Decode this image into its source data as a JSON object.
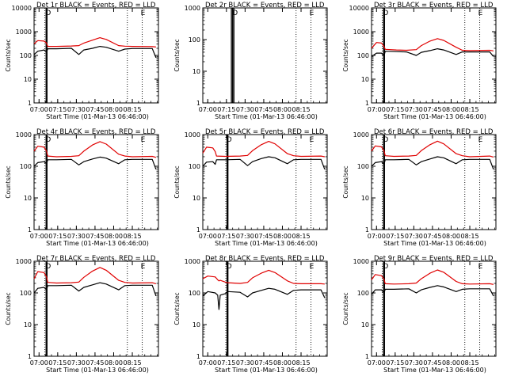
{
  "figure": {
    "xlabel": "Start Time (01-Mar-13 06:46:00)",
    "ylabel": "Counts/sec",
    "xticks": [
      "07:00",
      "07:15",
      "07:30",
      "07:45",
      "08:00",
      "08:15"
    ],
    "yticks_4decade": [
      "1",
      "10",
      "100",
      "1000",
      "10000"
    ],
    "yticks_3decade": [
      "1",
      "10",
      "100",
      "1000"
    ],
    "marker_letters": [
      "D",
      "E"
    ],
    "colors": {
      "events": "#000000",
      "lld": "#e00000",
      "axes": "#000000",
      "background": "#ffffff"
    }
  },
  "chart_data": [
    {
      "type": "line",
      "title": "Det 1r BLACK = Events, RED = LLD",
      "detector": "1r",
      "log_y": true,
      "ylim": [
        1,
        10000
      ],
      "x_unit": "minutes after 06:46:00",
      "xlim": [
        0,
        100
      ],
      "series": [
        {
          "name": "Events",
          "color": "#000000",
          "x": [
            0,
            3,
            8,
            10,
            11,
            18,
            30,
            36,
            40,
            47,
            53,
            58,
            68,
            73,
            79,
            95,
            98
          ],
          "y": [
            110,
            150,
            170,
            140,
            190,
            190,
            200,
            110,
            170,
            200,
            240,
            220,
            150,
            185,
            195,
            195,
            80
          ]
        },
        {
          "name": "LLD",
          "color": "#e00000",
          "x": [
            0,
            3,
            8,
            10,
            11,
            18,
            30,
            36,
            40,
            47,
            53,
            58,
            68,
            73,
            79,
            95,
            98
          ],
          "y": [
            310,
            420,
            400,
            330,
            240,
            240,
            250,
            260,
            330,
            440,
            560,
            470,
            260,
            245,
            240,
            235,
            225
          ]
        }
      ],
      "vlines": [
        {
          "x": 8.7,
          "style": "dotted"
        },
        {
          "x": 9.7,
          "style": "solid"
        },
        {
          "x": 10.4,
          "style": "solid"
        },
        {
          "x": 75,
          "style": "dotted"
        },
        {
          "x": 87,
          "style": "dotted"
        }
      ]
    },
    {
      "type": "line",
      "title": "Det 2r BLACK = Events, RED = LLD",
      "detector": "2r",
      "log_y": true,
      "ylim": [
        1,
        1000
      ],
      "x_unit": "minutes after 06:46:00",
      "xlim": [
        0,
        100
      ],
      "series": [],
      "vlines": [
        {
          "x": 23,
          "style": "solid"
        },
        {
          "x": 24,
          "style": "solid"
        },
        {
          "x": 25,
          "style": "solid"
        },
        {
          "x": 75,
          "style": "dotted"
        },
        {
          "x": 87,
          "style": "dotted"
        }
      ]
    },
    {
      "type": "line",
      "title": "Det 3r BLACK = Events, RED = LLD",
      "detector": "3r",
      "log_y": true,
      "ylim": [
        1,
        10000
      ],
      "x_unit": "minutes after 06:46:00",
      "xlim": [
        0,
        100
      ],
      "series": [
        {
          "name": "Events",
          "color": "#000000",
          "x": [
            0,
            4,
            8,
            10,
            11,
            20,
            28,
            36,
            40,
            47,
            53,
            58,
            68,
            73,
            79,
            95,
            98
          ],
          "y": [
            90,
            125,
            125,
            95,
            150,
            145,
            140,
            100,
            135,
            160,
            190,
            170,
            110,
            140,
            140,
            140,
            90
          ]
        },
        {
          "name": "LLD",
          "color": "#e00000",
          "x": [
            0,
            4,
            8,
            10,
            11,
            20,
            28,
            36,
            40,
            47,
            53,
            58,
            68,
            73,
            79,
            95,
            98
          ],
          "y": [
            200,
            350,
            330,
            240,
            180,
            170,
            165,
            175,
            260,
            400,
            510,
            430,
            220,
            165,
            160,
            165,
            155
          ]
        }
      ],
      "vlines": [
        {
          "x": 8.7,
          "style": "dotted"
        },
        {
          "x": 9.7,
          "style": "solid"
        },
        {
          "x": 10.4,
          "style": "solid"
        },
        {
          "x": 75,
          "style": "dotted"
        },
        {
          "x": 87,
          "style": "dotted"
        }
      ]
    },
    {
      "type": "line",
      "title": "Det 4r BLACK = Events, RED = LLD",
      "detector": "4r",
      "log_y": true,
      "ylim": [
        1,
        1000
      ],
      "x_unit": "minutes after 06:46:00",
      "xlim": [
        0,
        100
      ],
      "series": [
        {
          "name": "Events",
          "color": "#000000",
          "x": [
            0,
            3,
            8,
            10,
            11,
            18,
            30,
            36,
            40,
            47,
            53,
            58,
            68,
            73,
            79,
            95,
            98
          ],
          "y": [
            100,
            130,
            140,
            120,
            160,
            160,
            165,
            110,
            140,
            170,
            195,
            180,
            120,
            160,
            165,
            165,
            80
          ]
        },
        {
          "name": "LLD",
          "color": "#e00000",
          "x": [
            0,
            3,
            8,
            10,
            11,
            18,
            30,
            36,
            40,
            47,
            53,
            58,
            68,
            73,
            79,
            95,
            98
          ],
          "y": [
            300,
            430,
            400,
            300,
            210,
            200,
            205,
            215,
            300,
            470,
            600,
            500,
            240,
            210,
            200,
            205,
            190
          ]
        }
      ],
      "vlines": [
        {
          "x": 8.7,
          "style": "dotted"
        },
        {
          "x": 9.7,
          "style": "solid"
        },
        {
          "x": 10.4,
          "style": "solid"
        },
        {
          "x": 75,
          "style": "dotted"
        },
        {
          "x": 87,
          "style": "dotted"
        }
      ]
    },
    {
      "type": "line",
      "title": "Det 5r BLACK = Events, RED = LLD",
      "detector": "5r",
      "log_y": true,
      "ylim": [
        1,
        1000
      ],
      "x_unit": "minutes after 06:46:00",
      "xlim": [
        0,
        100
      ],
      "series": [
        {
          "name": "Events",
          "color": "#000000",
          "x": [
            0,
            3,
            8,
            10,
            11,
            18,
            30,
            36,
            40,
            47,
            53,
            58,
            68,
            73,
            79,
            95,
            98
          ],
          "y": [
            100,
            135,
            140,
            115,
            160,
            160,
            165,
            105,
            140,
            175,
            200,
            185,
            120,
            160,
            165,
            165,
            80
          ]
        },
        {
          "name": "LLD",
          "color": "#e00000",
          "x": [
            0,
            3,
            8,
            10,
            11,
            18,
            30,
            36,
            40,
            47,
            53,
            58,
            68,
            73,
            79,
            95,
            98
          ],
          "y": [
            260,
            400,
            380,
            290,
            210,
            205,
            210,
            220,
            310,
            480,
            610,
            510,
            250,
            215,
            205,
            210,
            200
          ]
        }
      ],
      "vlines": [
        {
          "x": 18.5,
          "style": "dotted"
        },
        {
          "x": 19.5,
          "style": "solid"
        },
        {
          "x": 20.2,
          "style": "solid"
        },
        {
          "x": 75,
          "style": "dotted"
        },
        {
          "x": 87,
          "style": "dotted"
        }
      ]
    },
    {
      "type": "line",
      "title": "Det 6r BLACK = Events, RED = LLD",
      "detector": "6r",
      "log_y": true,
      "ylim": [
        1,
        1000
      ],
      "x_unit": "minutes after 06:46:00",
      "xlim": [
        0,
        100
      ],
      "series": [
        {
          "name": "Events",
          "color": "#000000",
          "x": [
            0,
            3,
            8,
            10,
            11,
            18,
            30,
            36,
            40,
            47,
            53,
            58,
            68,
            73,
            79,
            95,
            98
          ],
          "y": [
            100,
            130,
            140,
            115,
            160,
            160,
            165,
            110,
            140,
            170,
            200,
            185,
            120,
            160,
            165,
            165,
            80
          ]
        },
        {
          "name": "LLD",
          "color": "#e00000",
          "x": [
            0,
            3,
            8,
            10,
            11,
            18,
            30,
            36,
            40,
            47,
            53,
            58,
            68,
            73,
            79,
            95,
            98
          ],
          "y": [
            300,
            440,
            410,
            310,
            215,
            205,
            210,
            220,
            310,
            480,
            620,
            510,
            250,
            215,
            200,
            210,
            195
          ]
        }
      ],
      "vlines": [
        {
          "x": 8.7,
          "style": "dotted"
        },
        {
          "x": 9.7,
          "style": "solid"
        },
        {
          "x": 10.4,
          "style": "solid"
        },
        {
          "x": 75,
          "style": "dotted"
        },
        {
          "x": 87,
          "style": "dotted"
        }
      ]
    },
    {
      "type": "line",
      "title": "Det 7r BLACK = Events, RED = LLD",
      "detector": "7r",
      "log_y": true,
      "ylim": [
        1,
        1000
      ],
      "x_unit": "minutes after 06:46:00",
      "xlim": [
        0,
        100
      ],
      "series": [
        {
          "name": "Events",
          "color": "#000000",
          "x": [
            0,
            3,
            8,
            10,
            11,
            18,
            30,
            36,
            40,
            47,
            53,
            58,
            68,
            73,
            79,
            95,
            98
          ],
          "y": [
            100,
            140,
            150,
            125,
            170,
            170,
            175,
            115,
            150,
            180,
            210,
            190,
            125,
            170,
            175,
            175,
            80
          ]
        },
        {
          "name": "LLD",
          "color": "#e00000",
          "x": [
            0,
            3,
            8,
            10,
            11,
            18,
            30,
            36,
            40,
            47,
            53,
            58,
            68,
            73,
            79,
            95,
            98
          ],
          "y": [
            280,
            470,
            440,
            320,
            215,
            205,
            210,
            220,
            310,
            490,
            640,
            520,
            250,
            215,
            205,
            210,
            195
          ]
        }
      ],
      "vlines": [
        {
          "x": 8.7,
          "style": "dotted"
        },
        {
          "x": 9.7,
          "style": "solid"
        },
        {
          "x": 10.4,
          "style": "solid"
        },
        {
          "x": 75,
          "style": "dotted"
        },
        {
          "x": 87,
          "style": "dotted"
        }
      ]
    },
    {
      "type": "line",
      "title": "Det 8r BLACK = Events, RED = LLD",
      "detector": "8r",
      "log_y": true,
      "ylim": [
        1,
        1000
      ],
      "x_unit": "minutes after 06:46:00",
      "xlim": [
        0,
        100
      ],
      "series": [
        {
          "name": "Events",
          "color": "#000000",
          "x": [
            0,
            4,
            10,
            12,
            13,
            14,
            18,
            20,
            30,
            36,
            40,
            47,
            53,
            58,
            68,
            73,
            79,
            95,
            98
          ],
          "y": [
            80,
            110,
            100,
            85,
            30,
            85,
            95,
            110,
            105,
            75,
            100,
            120,
            140,
            130,
            90,
            120,
            125,
            125,
            70
          ]
        },
        {
          "name": "LLD",
          "color": "#e00000",
          "x": [
            0,
            4,
            10,
            12,
            13,
            14,
            18,
            20,
            30,
            36,
            40,
            47,
            53,
            58,
            68,
            73,
            79,
            95,
            98
          ],
          "y": [
            280,
            340,
            320,
            260,
            240,
            250,
            220,
            210,
            200,
            215,
            300,
            420,
            520,
            440,
            240,
            200,
            195,
            195,
            190
          ]
        }
      ],
      "vlines": [
        {
          "x": 18.5,
          "style": "dotted"
        },
        {
          "x": 19.5,
          "style": "solid"
        },
        {
          "x": 20.2,
          "style": "solid"
        },
        {
          "x": 75,
          "style": "dotted"
        },
        {
          "x": 87,
          "style": "dotted"
        }
      ]
    },
    {
      "type": "line",
      "title": "Det 9r BLACK = Events, RED = LLD",
      "detector": "9r",
      "log_y": true,
      "ylim": [
        1,
        1000
      ],
      "x_unit": "minutes after 06:46:00",
      "xlim": [
        0,
        100
      ],
      "series": [
        {
          "name": "Events",
          "color": "#000000",
          "x": [
            0,
            3,
            8,
            10,
            11,
            18,
            30,
            36,
            40,
            47,
            53,
            58,
            68,
            73,
            79,
            95,
            98
          ],
          "y": [
            90,
            125,
            125,
            100,
            130,
            130,
            135,
            100,
            125,
            150,
            170,
            155,
            110,
            130,
            135,
            135,
            80
          ]
        },
        {
          "name": "LLD",
          "color": "#e00000",
          "x": [
            0,
            3,
            8,
            10,
            11,
            18,
            30,
            36,
            40,
            47,
            53,
            58,
            68,
            73,
            79,
            95,
            98
          ],
          "y": [
            260,
            380,
            350,
            270,
            195,
            190,
            195,
            205,
            280,
            420,
            530,
            450,
            230,
            195,
            190,
            195,
            185
          ]
        }
      ],
      "vlines": [
        {
          "x": 8.7,
          "style": "dotted"
        },
        {
          "x": 9.7,
          "style": "solid"
        },
        {
          "x": 10.4,
          "style": "solid"
        },
        {
          "x": 75,
          "style": "dotted"
        },
        {
          "x": 87,
          "style": "dotted"
        }
      ]
    }
  ]
}
